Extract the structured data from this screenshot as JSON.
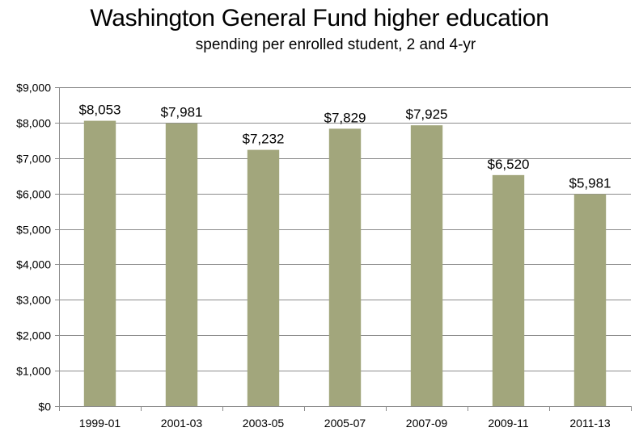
{
  "title": "Washington General Fund higher education",
  "subtitle": "spending per enrolled student, 2 and 4-yr",
  "chart_data": {
    "type": "bar",
    "title": "Washington General Fund higher education",
    "subtitle": "spending per enrolled student, 2 and 4-yr",
    "categories": [
      "1999-01",
      "2001-03",
      "2003-05",
      "2005-07",
      "2007-09",
      "2009-11",
      "2011-13"
    ],
    "values": [
      8053,
      7981,
      7232,
      7829,
      7925,
      6520,
      5981
    ],
    "data_labels": [
      "$8,053",
      "$7,981",
      "$7,232",
      "$7,829",
      "$7,925",
      "$6,520",
      "$5,981"
    ],
    "ylim": [
      0,
      9000
    ],
    "yticks": [
      0,
      1000,
      2000,
      3000,
      4000,
      5000,
      6000,
      7000,
      8000,
      9000
    ],
    "ytick_labels": [
      "$0",
      "$1,000",
      "$2,000",
      "$3,000",
      "$4,000",
      "$5,000",
      "$6,000",
      "$7,000",
      "$8,000",
      "$9,000"
    ],
    "xlabel": "",
    "ylabel": "",
    "grid": true,
    "legend": "none",
    "bar_color": "#a2a67c",
    "grid_color": "#8c8c8c"
  }
}
